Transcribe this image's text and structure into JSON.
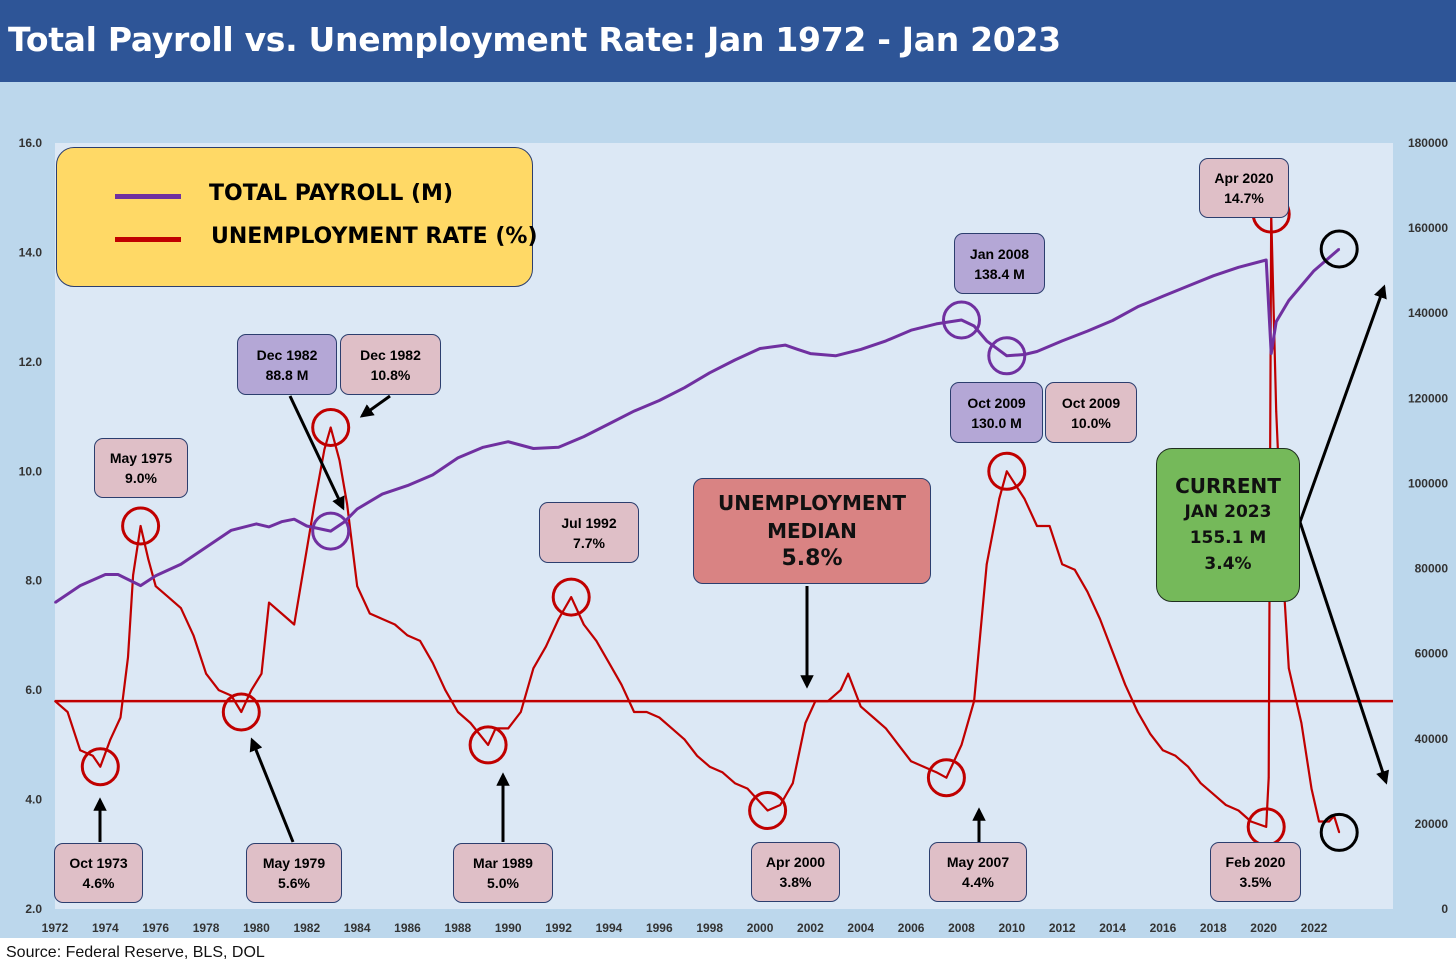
{
  "title": "Total Payroll vs. Unemployment Rate: Jan 1972 - Jan 2023",
  "source": "Source: Federal Reserve, BLS, DOL",
  "legend": {
    "payroll": "TOTAL PAYROLL (M)",
    "unemployment": "UNEMPLOYMENT RATE (%)"
  },
  "colors": {
    "payroll": "#7030a0",
    "unemployment": "#c00000",
    "title_bar": "#2e5597",
    "plot_bg": "#dce8f5",
    "outer_bg": "#bcd7ec"
  },
  "callouts": {
    "oct1973": [
      "Oct 1973",
      "4.6%"
    ],
    "may1975": [
      "May 1975",
      "9.0%"
    ],
    "may1979": [
      "May 1979",
      "5.6%"
    ],
    "dec1982_payroll": [
      "Dec 1982",
      "88.8 M"
    ],
    "dec1982_unemp": [
      "Dec 1982",
      "10.8%"
    ],
    "mar1989": [
      "Mar 1989",
      "5.0%"
    ],
    "jul1992": [
      "Jul 1992",
      "7.7%"
    ],
    "apr2000": [
      "Apr 2000",
      "3.8%"
    ],
    "may2007": [
      "May 2007",
      "4.4%"
    ],
    "jan2008": [
      "Jan 2008",
      "138.4 M"
    ],
    "oct2009_payroll": [
      "Oct 2009",
      "130.0 M"
    ],
    "oct2009_unemp": [
      "Oct 2009",
      "10.0%"
    ],
    "feb2020": [
      "Feb 2020",
      "3.5%"
    ],
    "apr2020": [
      "Apr 2020",
      "14.7%"
    ]
  },
  "median_box": [
    "UNEMPLOYMENT",
    "MEDIAN",
    "5.8%"
  ],
  "current_box": [
    "CURRENT",
    "JAN 2023",
    "155.1 M",
    "3.4%"
  ],
  "chart_data": {
    "type": "line",
    "title": "Total Payroll vs. Unemployment Rate: Jan 1972 - Jan 2023",
    "x_ticks": [
      "1972",
      "1974",
      "1976",
      "1978",
      "1980",
      "1982",
      "1984",
      "1986",
      "1988",
      "1990",
      "1992",
      "1994",
      "1996",
      "1998",
      "2000",
      "2002",
      "2004",
      "2006",
      "2008",
      "2010",
      "2012",
      "2014",
      "2016",
      "2018",
      "2020",
      "2022"
    ],
    "y_left": {
      "ticks": [
        "2.0",
        "4.0",
        "6.0",
        "8.0",
        "10.0",
        "12.0",
        "14.0",
        "16.0"
      ],
      "range": [
        2,
        16
      ]
    },
    "y_right": {
      "ticks": [
        "0",
        "20000",
        "40000",
        "60000",
        "80000",
        "100000",
        "120000",
        "140000",
        "160000",
        "180000"
      ],
      "range": [
        0,
        180000
      ]
    },
    "grid": false,
    "legend_position": "top-left",
    "median_unemployment": 5.8,
    "series": [
      {
        "name": "UNEMPLOYMENT RATE (%)",
        "axis": "left",
        "points": [
          [
            1972.0,
            5.8
          ],
          [
            1972.5,
            5.6
          ],
          [
            1973.0,
            4.9
          ],
          [
            1973.5,
            4.8
          ],
          [
            1973.8,
            4.6
          ],
          [
            1974.2,
            5.1
          ],
          [
            1974.6,
            5.5
          ],
          [
            1974.9,
            6.6
          ],
          [
            1975.1,
            8.1
          ],
          [
            1975.4,
            9.0
          ],
          [
            1975.7,
            8.4
          ],
          [
            1976.0,
            7.9
          ],
          [
            1976.5,
            7.7
          ],
          [
            1977.0,
            7.5
          ],
          [
            1977.5,
            7.0
          ],
          [
            1978.0,
            6.3
          ],
          [
            1978.5,
            6.0
          ],
          [
            1979.0,
            5.9
          ],
          [
            1979.4,
            5.6
          ],
          [
            1979.8,
            6.0
          ],
          [
            1980.2,
            6.3
          ],
          [
            1980.5,
            7.6
          ],
          [
            1981.0,
            7.4
          ],
          [
            1981.5,
            7.2
          ],
          [
            1981.9,
            8.3
          ],
          [
            1982.3,
            9.4
          ],
          [
            1982.7,
            10.4
          ],
          [
            1982.95,
            10.8
          ],
          [
            1983.3,
            10.2
          ],
          [
            1983.6,
            9.4
          ],
          [
            1984.0,
            7.9
          ],
          [
            1984.5,
            7.4
          ],
          [
            1985.0,
            7.3
          ],
          [
            1985.5,
            7.2
          ],
          [
            1986.0,
            7.0
          ],
          [
            1986.5,
            6.9
          ],
          [
            1987.0,
            6.5
          ],
          [
            1987.5,
            6.0
          ],
          [
            1988.0,
            5.6
          ],
          [
            1988.5,
            5.4
          ],
          [
            1989.2,
            5.0
          ],
          [
            1989.5,
            5.3
          ],
          [
            1990.0,
            5.3
          ],
          [
            1990.5,
            5.6
          ],
          [
            1991.0,
            6.4
          ],
          [
            1991.5,
            6.8
          ],
          [
            1992.0,
            7.3
          ],
          [
            1992.5,
            7.7
          ],
          [
            1993.0,
            7.2
          ],
          [
            1993.5,
            6.9
          ],
          [
            1994.0,
            6.5
          ],
          [
            1994.5,
            6.1
          ],
          [
            1995.0,
            5.6
          ],
          [
            1995.5,
            5.6
          ],
          [
            1996.0,
            5.5
          ],
          [
            1996.5,
            5.3
          ],
          [
            1997.0,
            5.1
          ],
          [
            1997.5,
            4.8
          ],
          [
            1998.0,
            4.6
          ],
          [
            1998.5,
            4.5
          ],
          [
            1999.0,
            4.3
          ],
          [
            1999.5,
            4.2
          ],
          [
            2000.3,
            3.8
          ],
          [
            2000.8,
            3.9
          ],
          [
            2001.3,
            4.3
          ],
          [
            2001.8,
            5.4
          ],
          [
            2002.2,
            5.8
          ],
          [
            2002.7,
            5.8
          ],
          [
            2003.2,
            6.0
          ],
          [
            2003.5,
            6.3
          ],
          [
            2004.0,
            5.7
          ],
          [
            2004.5,
            5.5
          ],
          [
            2005.0,
            5.3
          ],
          [
            2005.5,
            5.0
          ],
          [
            2006.0,
            4.7
          ],
          [
            2006.5,
            4.6
          ],
          [
            2007.0,
            4.5
          ],
          [
            2007.4,
            4.4
          ],
          [
            2008.0,
            5.0
          ],
          [
            2008.5,
            5.8
          ],
          [
            2009.0,
            8.3
          ],
          [
            2009.5,
            9.5
          ],
          [
            2009.8,
            10.0
          ],
          [
            2010.5,
            9.5
          ],
          [
            2011.0,
            9.0
          ],
          [
            2011.5,
            9.0
          ],
          [
            2012.0,
            8.3
          ],
          [
            2012.5,
            8.2
          ],
          [
            2013.0,
            7.8
          ],
          [
            2013.5,
            7.3
          ],
          [
            2014.0,
            6.7
          ],
          [
            2014.5,
            6.1
          ],
          [
            2015.0,
            5.6
          ],
          [
            2015.5,
            5.2
          ],
          [
            2016.0,
            4.9
          ],
          [
            2016.5,
            4.8
          ],
          [
            2017.0,
            4.6
          ],
          [
            2017.5,
            4.3
          ],
          [
            2018.0,
            4.1
          ],
          [
            2018.5,
            3.9
          ],
          [
            2019.0,
            3.8
          ],
          [
            2019.5,
            3.6
          ],
          [
            2020.1,
            3.5
          ],
          [
            2020.2,
            4.4
          ],
          [
            2020.3,
            14.7
          ],
          [
            2020.5,
            11.1
          ],
          [
            2020.8,
            7.9
          ],
          [
            2021.0,
            6.4
          ],
          [
            2021.5,
            5.4
          ],
          [
            2021.9,
            4.2
          ],
          [
            2022.2,
            3.6
          ],
          [
            2022.6,
            3.6
          ],
          [
            2022.8,
            3.7
          ],
          [
            2023.0,
            3.4
          ]
        ]
      },
      {
        "name": "TOTAL PAYROLL (M)",
        "axis": "right",
        "points": [
          [
            1972.0,
            72000
          ],
          [
            1973.0,
            76000
          ],
          [
            1974.0,
            78600
          ],
          [
            1974.5,
            78600
          ],
          [
            1975.4,
            76000
          ],
          [
            1976.0,
            78300
          ],
          [
            1977.0,
            81000
          ],
          [
            1978.0,
            85000
          ],
          [
            1979.0,
            89000
          ],
          [
            1980.0,
            90500
          ],
          [
            1980.5,
            89800
          ],
          [
            1981.0,
            91000
          ],
          [
            1981.5,
            91600
          ],
          [
            1982.0,
            90000
          ],
          [
            1982.95,
            88800
          ],
          [
            1983.5,
            91000
          ],
          [
            1984.0,
            94000
          ],
          [
            1985.0,
            97500
          ],
          [
            1986.0,
            99500
          ],
          [
            1987.0,
            102000
          ],
          [
            1988.0,
            106000
          ],
          [
            1989.0,
            108500
          ],
          [
            1990.0,
            109800
          ],
          [
            1991.0,
            108200
          ],
          [
            1992.0,
            108500
          ],
          [
            1993.0,
            111000
          ],
          [
            1994.0,
            114000
          ],
          [
            1995.0,
            117000
          ],
          [
            1996.0,
            119500
          ],
          [
            1997.0,
            122500
          ],
          [
            1998.0,
            126000
          ],
          [
            1999.0,
            129000
          ],
          [
            2000.0,
            131700
          ],
          [
            2001.0,
            132500
          ],
          [
            2001.5,
            131500
          ],
          [
            2002.0,
            130500
          ],
          [
            2003.0,
            130000
          ],
          [
            2004.0,
            131500
          ],
          [
            2005.0,
            133500
          ],
          [
            2006.0,
            136000
          ],
          [
            2007.0,
            137500
          ],
          [
            2008.0,
            138400
          ],
          [
            2008.5,
            137000
          ],
          [
            2009.0,
            133500
          ],
          [
            2009.8,
            130000
          ],
          [
            2010.5,
            130300
          ],
          [
            2011.0,
            131000
          ],
          [
            2012.0,
            133500
          ],
          [
            2013.0,
            135800
          ],
          [
            2014.0,
            138300
          ],
          [
            2015.0,
            141500
          ],
          [
            2016.0,
            144000
          ],
          [
            2017.0,
            146400
          ],
          [
            2018.0,
            148800
          ],
          [
            2019.0,
            150800
          ],
          [
            2020.1,
            152500
          ],
          [
            2020.3,
            130500
          ],
          [
            2020.5,
            138000
          ],
          [
            2021.0,
            143000
          ],
          [
            2022.0,
            150000
          ],
          [
            2023.0,
            155100
          ]
        ]
      }
    ]
  }
}
